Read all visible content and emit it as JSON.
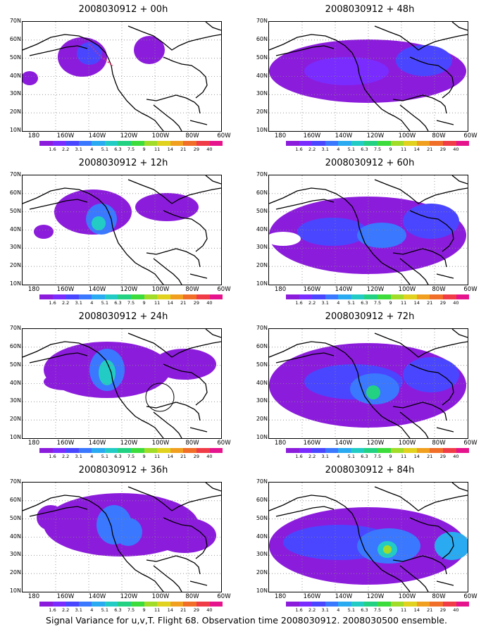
{
  "caption": "Signal Variance for u,v,T. Flight 68. Observation time 2008030912. 2008030500 ensemble.",
  "y_ticks": [
    "70N",
    "60N",
    "50N",
    "40N",
    "30N",
    "20N",
    "10N"
  ],
  "x_ticks": [
    "180",
    "160W",
    "140W",
    "120W",
    "100W",
    "80W",
    "60W"
  ],
  "colorbar": {
    "labels": [
      "1.6",
      "2.2",
      "3.1",
      "4",
      "5.1",
      "6.3",
      "7.5",
      "9",
      "11",
      "14",
      "21",
      "29",
      "40"
    ],
    "colors": [
      "#8c1cdc",
      "#7a2cff",
      "#4a46ff",
      "#3a78ff",
      "#2aaaf0",
      "#22ccc4",
      "#22d282",
      "#3cdc3c",
      "#a0dc28",
      "#e0d21e",
      "#f0a01e",
      "#f06e28",
      "#f03c46",
      "#e6148c"
    ]
  },
  "panels": [
    {
      "title": "2008030912 + 00h",
      "col": 0,
      "row": 0
    },
    {
      "title": "2008030912 + 12h",
      "col": 0,
      "row": 1
    },
    {
      "title": "2008030912 + 24h",
      "col": 0,
      "row": 2
    },
    {
      "title": "2008030912 + 36h",
      "col": 0,
      "row": 3
    },
    {
      "title": "2008030912 + 48h",
      "col": 1,
      "row": 0
    },
    {
      "title": "2008030912 + 60h",
      "col": 1,
      "row": 1
    },
    {
      "title": "2008030912 + 72h",
      "col": 1,
      "row": 2
    },
    {
      "title": "2008030912 + 84h",
      "col": 1,
      "row": 3
    }
  ]
}
